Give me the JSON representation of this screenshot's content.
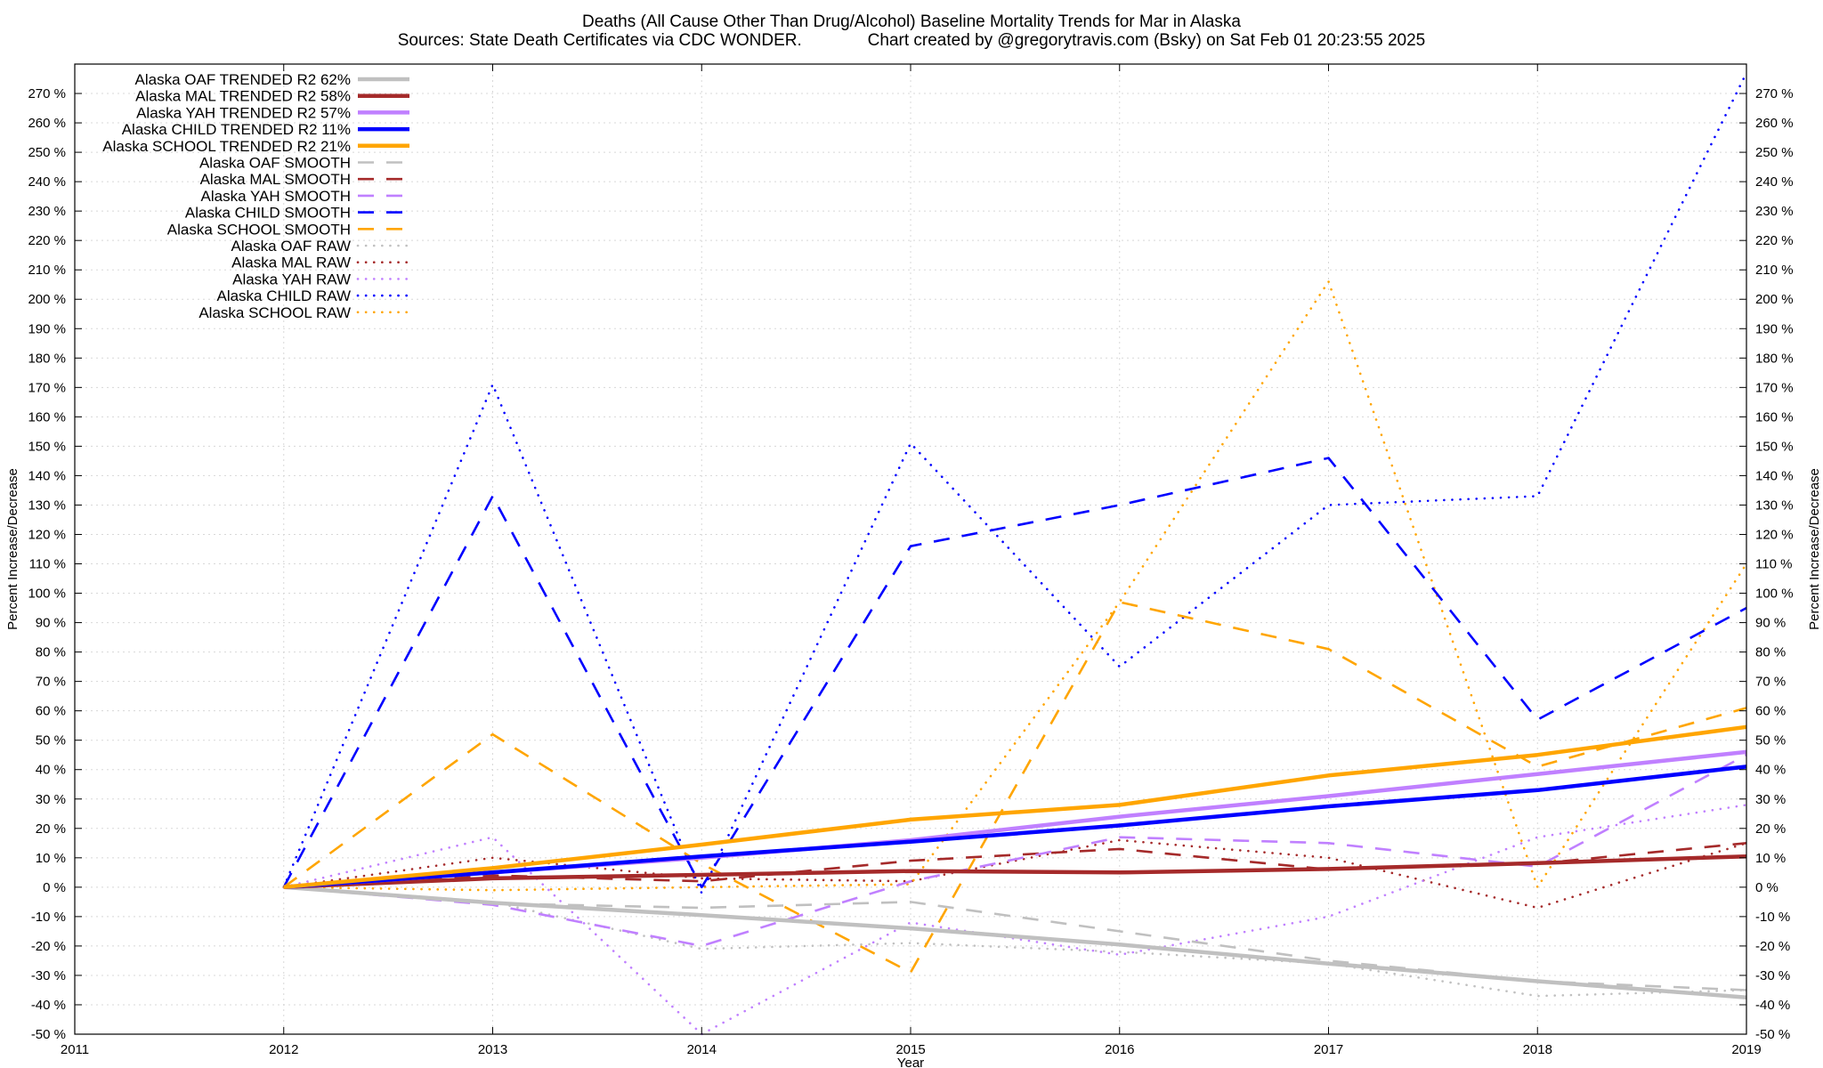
{
  "chart_data": {
    "type": "line",
    "title": "Deaths (All Cause Other Than Drug/Alcohol)  Baseline Mortality Trends for Mar in Alaska",
    "subtitle": "Sources: State Death Certificates via CDC WONDER.              Chart created by @gregorytravis.com (Bsky) on Sat Feb 01 20:23:55 2025",
    "xlabel": "Year",
    "ylabel": "Percent Increase/Decrease",
    "y2label": "Percent Increase/Decrease",
    "xlim": [
      2011,
      2019
    ],
    "ylim": [
      -50,
      280
    ],
    "x_ticks": [
      2011,
      2012,
      2013,
      2014,
      2015,
      2016,
      2017,
      2018,
      2019
    ],
    "x_tick_labels": [
      "2011",
      "2012",
      "2013",
      "2014",
      "2015",
      "2016",
      "2017",
      "2018",
      "2019"
    ],
    "y_ticks": [
      -50,
      -40,
      -30,
      -20,
      -10,
      0,
      10,
      20,
      30,
      40,
      50,
      60,
      70,
      80,
      90,
      100,
      110,
      120,
      130,
      140,
      150,
      160,
      170,
      180,
      190,
      200,
      210,
      220,
      230,
      240,
      250,
      260,
      270
    ],
    "y_tick_labels": [
      "-50 %",
      "-40 %",
      "-30 %",
      "-20 %",
      "-10 %",
      "0 %",
      "10 %",
      "20 %",
      "30 %",
      "40 %",
      "50 %",
      "60 %",
      "70 %",
      "80 %",
      "90 %",
      "100 %",
      "110 %",
      "120 %",
      "130 %",
      "140 %",
      "150 %",
      "160 %",
      "170 %",
      "180 %",
      "190 %",
      "200 %",
      "210 %",
      "220 %",
      "230 %",
      "240 %",
      "250 %",
      "260 %",
      "270 %"
    ],
    "grid": true,
    "legend_position": "top-left",
    "series": [
      {
        "name": "Alaska OAF TRENDED R2  62%",
        "color": "#c0c0c0",
        "style": "solid",
        "x": [
          2012,
          2013,
          2014,
          2015,
          2016,
          2017,
          2018,
          2019
        ],
        "values": [
          0,
          -5.3,
          -9.5,
          -14,
          -19.5,
          -26,
          -32,
          -37.5
        ]
      },
      {
        "name": "Alaska MAL TRENDED R2  58%",
        "color": "#a52a2a",
        "style": "solid",
        "x": [
          2012,
          2013,
          2014,
          2015,
          2016,
          2017,
          2018,
          2019
        ],
        "values": [
          0,
          3,
          4.2,
          5.5,
          5,
          6.2,
          8.2,
          10.5
        ]
      },
      {
        "name": "Alaska YAH TRENDED R2  57%",
        "color": "#c080ff",
        "style": "solid",
        "x": [
          2012,
          2013,
          2014,
          2015,
          2016,
          2017,
          2018,
          2019
        ],
        "values": [
          0,
          5,
          10,
          16,
          24,
          31,
          38.5,
          46
        ]
      },
      {
        "name": "Alaska CHILD TRENDED R2  11%",
        "color": "#0000ff",
        "style": "solid",
        "x": [
          2012,
          2013,
          2014,
          2015,
          2016,
          2017,
          2018,
          2019
        ],
        "values": [
          0,
          5,
          10.5,
          15.5,
          21,
          27.5,
          33,
          41
        ]
      },
      {
        "name": "Alaska SCHOOL TRENDED R2  21%",
        "color": "#ffa500",
        "style": "solid",
        "x": [
          2012,
          2013,
          2014,
          2015,
          2016,
          2017,
          2018,
          2019
        ],
        "values": [
          0,
          6.5,
          14.5,
          23,
          28,
          38,
          45,
          54.5
        ]
      },
      {
        "name": "Alaska OAF SMOOTH",
        "color": "#c0c0c0",
        "style": "dash",
        "x": [
          2012,
          2013,
          2014,
          2015,
          2016,
          2017,
          2018,
          2019
        ],
        "values": [
          0,
          -5.5,
          -7,
          -5,
          -15,
          -25,
          -32,
          -35
        ]
      },
      {
        "name": "Alaska MAL SMOOTH",
        "color": "#a52a2a",
        "style": "dash",
        "x": [
          2012,
          2013,
          2014,
          2015,
          2016,
          2017,
          2018,
          2019
        ],
        "values": [
          0,
          4,
          2,
          9,
          13,
          6,
          8,
          15
        ]
      },
      {
        "name": "Alaska YAH SMOOTH",
        "color": "#c080ff",
        "style": "dash",
        "x": [
          2012,
          2013,
          2014,
          2015,
          2016,
          2017,
          2018,
          2019
        ],
        "values": [
          0,
          -6,
          -20,
          2,
          17,
          15,
          7,
          45
        ]
      },
      {
        "name": "Alaska CHILD SMOOTH",
        "color": "#0000ff",
        "style": "dash",
        "x": [
          2012,
          2013,
          2014,
          2015,
          2016,
          2017,
          2018,
          2019
        ],
        "values": [
          0,
          133,
          0,
          116,
          130,
          146,
          57,
          95
        ]
      },
      {
        "name": "Alaska SCHOOL SMOOTH",
        "color": "#ffa500",
        "style": "dash",
        "x": [
          2012,
          2013,
          2014,
          2015,
          2016,
          2017,
          2018,
          2019
        ],
        "values": [
          0,
          52,
          8,
          -29,
          97,
          81,
          41,
          61
        ]
      },
      {
        "name": "Alaska OAF RAW",
        "color": "#c0c0c0",
        "style": "dot",
        "x": [
          2012,
          2013,
          2014,
          2015,
          2016,
          2017,
          2018,
          2019
        ],
        "values": [
          0,
          -5,
          -21,
          -19,
          -22,
          -26,
          -37,
          -35
        ]
      },
      {
        "name": "Alaska MAL RAW",
        "color": "#a52a2a",
        "style": "dot",
        "x": [
          2012,
          2013,
          2014,
          2015,
          2016,
          2017,
          2018,
          2019
        ],
        "values": [
          0,
          10,
          3,
          2,
          16,
          10,
          -7,
          15
        ]
      },
      {
        "name": "Alaska YAH RAW",
        "color": "#c080ff",
        "style": "dot",
        "x": [
          2012,
          2013,
          2014,
          2015,
          2016,
          2017,
          2018,
          2019
        ],
        "values": [
          0,
          17,
          -50,
          -12,
          -23,
          -10,
          17,
          28
        ]
      },
      {
        "name": "Alaska CHILD RAW",
        "color": "#0000ff",
        "style": "dot",
        "x": [
          2012,
          2013,
          2014,
          2015,
          2016,
          2017,
          2018,
          2019
        ],
        "values": [
          0,
          171,
          -2,
          151,
          75,
          130,
          133,
          277
        ]
      },
      {
        "name": "Alaska SCHOOL RAW",
        "color": "#ffa500",
        "style": "dot",
        "x": [
          2012,
          2013,
          2014,
          2015,
          2016,
          2017,
          2018,
          2019
        ],
        "values": [
          0,
          -1,
          0,
          1,
          97,
          206,
          0,
          110
        ]
      }
    ]
  }
}
